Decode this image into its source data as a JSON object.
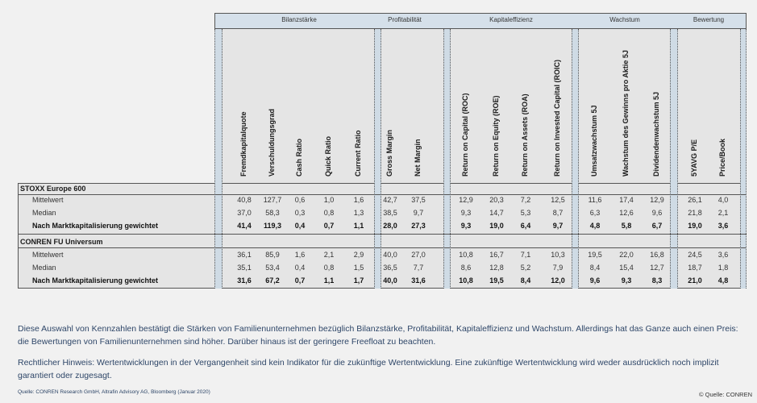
{
  "groups": [
    {
      "label": "Bilanzstärke"
    },
    {
      "label": "Profitabilität"
    },
    {
      "label": "Kapitaleffizienz"
    },
    {
      "label": "Wachstum"
    },
    {
      "label": "Bewertung"
    }
  ],
  "columns": [
    "Fremdkapitalquote",
    "Verschuldungsgrad",
    "Cash Ratio",
    "Quick Ratio",
    "Current Ratio",
    "Gross Margin",
    "Net Margin",
    "Return on Capital (ROC)",
    "Return on Equity (ROE)",
    "Return on Assets (ROA)",
    "Return on Invested Capital (ROIC)",
    "Umsatzwachstum 5J",
    "Wachstum des Gewinns pro Aktie 5J",
    "Dividendenwachstum 5J",
    "5YAVG P/E",
    "Price/Book"
  ],
  "sections": [
    {
      "title": "STOXX Europe 600",
      "rows": [
        {
          "label": "Mittelwert",
          "bold": false,
          "values": [
            "40,8",
            "127,7",
            "0,6",
            "1,0",
            "1,6",
            "42,7",
            "37,5",
            "12,9",
            "20,3",
            "7,2",
            "12,5",
            "11,6",
            "17,4",
            "12,9",
            "26,1",
            "4,0"
          ]
        },
        {
          "label": "Median",
          "bold": false,
          "values": [
            "37,0",
            "58,3",
            "0,3",
            "0,8",
            "1,3",
            "38,5",
            "9,7",
            "9,3",
            "14,7",
            "5,3",
            "8,7",
            "6,3",
            "12,6",
            "9,6",
            "21,8",
            "2,1"
          ]
        },
        {
          "label": "Nach Marktkapitalisierung gewichtet",
          "bold": true,
          "values": [
            "41,4",
            "119,3",
            "0,4",
            "0,7",
            "1,1",
            "28,0",
            "27,3",
            "9,3",
            "19,0",
            "6,4",
            "9,7",
            "4,8",
            "5,8",
            "6,7",
            "19,0",
            "3,6"
          ]
        }
      ]
    },
    {
      "title": "CONREN FU Universum",
      "rows": [
        {
          "label": "Mittelwert",
          "bold": false,
          "values": [
            "36,1",
            "85,9",
            "1,6",
            "2,1",
            "2,9",
            "40,0",
            "27,0",
            "10,8",
            "16,7",
            "7,1",
            "10,3",
            "19,5",
            "22,0",
            "16,8",
            "24,5",
            "3,6"
          ]
        },
        {
          "label": "Median",
          "bold": false,
          "values": [
            "35,1",
            "53,4",
            "0,4",
            "0,8",
            "1,5",
            "36,5",
            "7,7",
            "8,6",
            "12,8",
            "5,2",
            "7,9",
            "8,4",
            "15,4",
            "12,7",
            "18,7",
            "1,8"
          ]
        },
        {
          "label": "Nach Marktkapitalisierung gewichtet",
          "bold": true,
          "values": [
            "31,6",
            "67,2",
            "0,7",
            "1,1",
            "1,7",
            "40,0",
            "31,6",
            "10,8",
            "19,5",
            "8,4",
            "12,0",
            "9,6",
            "9,3",
            "8,3",
            "21,0",
            "4,8"
          ]
        }
      ]
    }
  ],
  "text": {
    "p1": "Diese Auswahl von Kennzahlen bestätigt die Stärken von Familienunternehmen bezüglich Bilanzstärke, Profitabilität, Kapitaleffizienz und Wachstum. Allerdings hat das Ganze auch einen Preis: die Bewertungen von Familienunternehmen sind höher. Darüber hinaus ist der geringere Freefloat zu beachten.",
    "p2": "Rechtlicher Hinweis: Wertentwicklungen in der Vergangenheit sind kein Indikator für die zukünftige Wertentwicklung. Eine zukünftige Wertentwicklung wird weder ausdrücklich noch implizit garantiert oder zugesagt.",
    "source": "Quelle: CONREN Research GmbH, Altrafin Advisory AG, Bloomberg (Januar 2020)",
    "credit": "© Quelle: CONREN"
  }
}
